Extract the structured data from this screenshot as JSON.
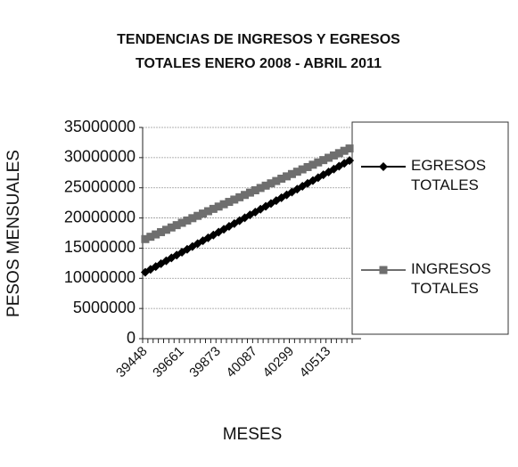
{
  "chart_data": {
    "type": "line",
    "title": [
      "TENDENCIAS DE INGRESOS Y EGRESOS",
      "TOTALES ENERO 2008 - ABRIL 2011"
    ],
    "y_label": "PESOS MENSUALES",
    "x_label": "MESES",
    "categories": [
      39448,
      null,
      null,
      null,
      null,
      null,
      null,
      39661,
      null,
      null,
      null,
      null,
      null,
      null,
      39873,
      null,
      null,
      null,
      null,
      null,
      null,
      40087,
      null,
      null,
      null,
      null,
      null,
      null,
      40299,
      null,
      null,
      null,
      null,
      null,
      null,
      40513,
      null,
      null,
      null,
      null
    ],
    "series": [
      {
        "name": "EGRESOS TOTALES",
        "color": "#000000",
        "marker": "diamond",
        "values": [
          11000000,
          11475000,
          11950000,
          12425000,
          12900000,
          13375000,
          13850000,
          14325000,
          14800000,
          15275000,
          15750000,
          16225000,
          16700000,
          17175000,
          17650000,
          18125000,
          18600000,
          19075000,
          19550000,
          20025000,
          20500000,
          20975000,
          21450000,
          21925000,
          22400000,
          22875000,
          23350000,
          23825000,
          24300000,
          24775000,
          25250000,
          25725000,
          26200000,
          26675000,
          27150000,
          27625000,
          28100000,
          28575000,
          29050000,
          29525000
        ]
      },
      {
        "name": "INGRESOS TOTALES",
        "color": "#6e6e6e",
        "marker": "square",
        "values": [
          16500000,
          16885000,
          17270000,
          17655000,
          18040000,
          18425000,
          18810000,
          19195000,
          19580000,
          19965000,
          20350000,
          20735000,
          21120000,
          21505000,
          21890000,
          22275000,
          22660000,
          23045000,
          23430000,
          23815000,
          24200000,
          24585000,
          24970000,
          25355000,
          25740000,
          26125000,
          26510000,
          26895000,
          27280000,
          27665000,
          28050000,
          28435000,
          28820000,
          29205000,
          29590000,
          29975000,
          30360000,
          30745000,
          31130000,
          31515000
        ]
      }
    ],
    "ylim": [
      0,
      35000000
    ],
    "yticks": [
      0,
      5000000,
      10000000,
      15000000,
      20000000,
      25000000,
      30000000,
      35000000
    ],
    "grid": true,
    "legend": "right"
  }
}
